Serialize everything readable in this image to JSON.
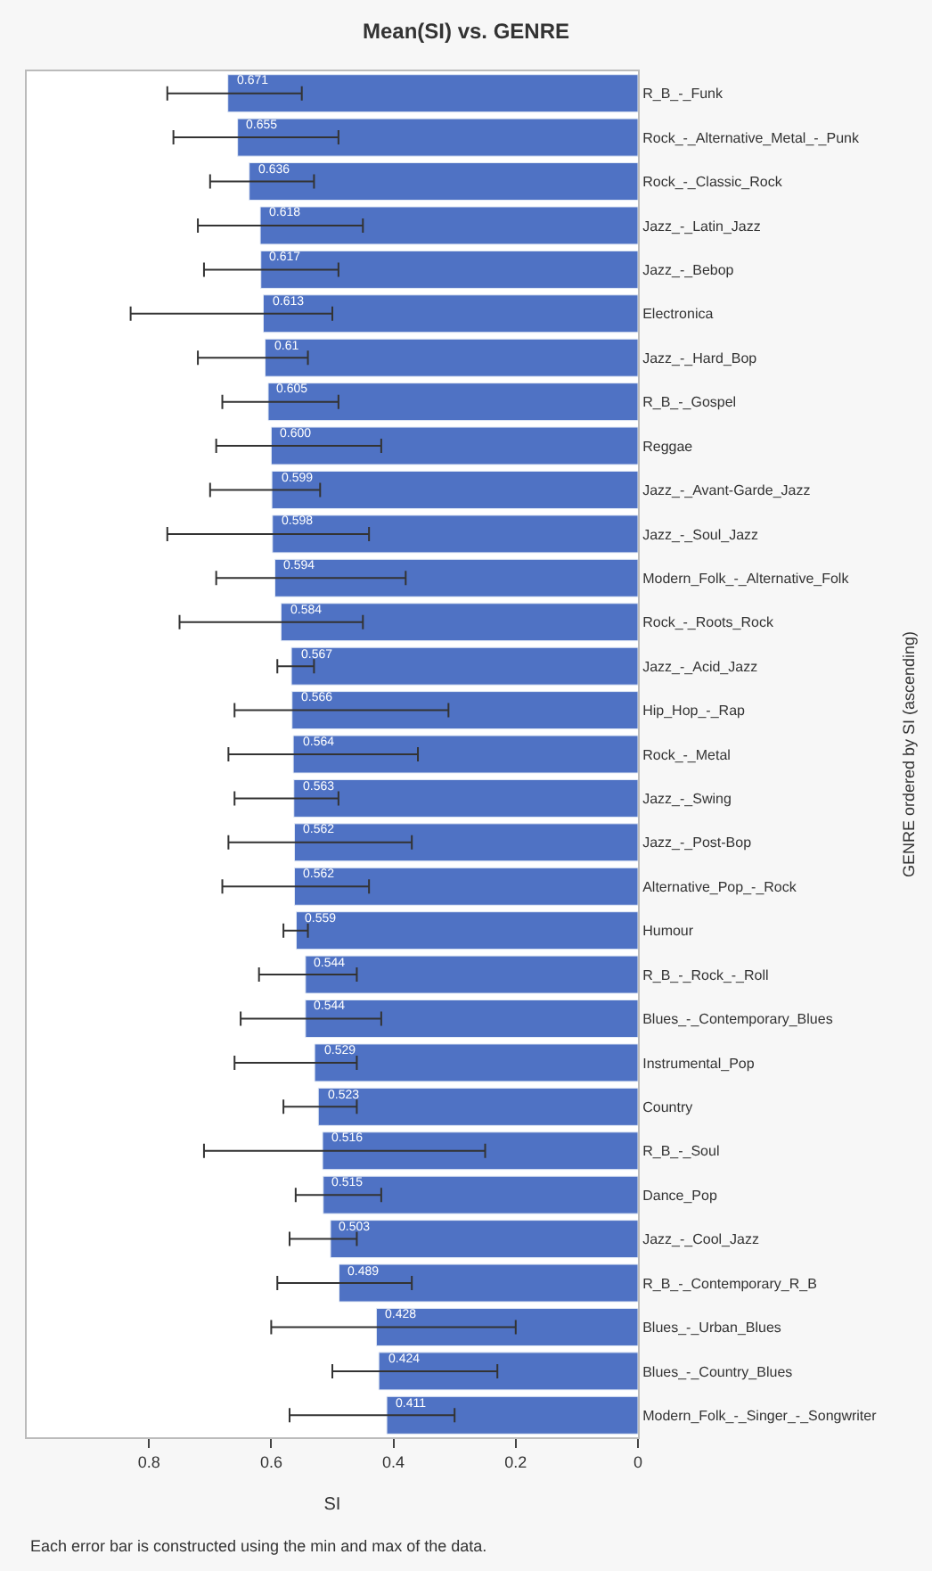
{
  "chart_data": {
    "type": "bar",
    "orientation": "horizontal",
    "title": "Mean(SI) vs. GENRE",
    "xlabel": "SI",
    "ylabel": "GENRE ordered by SI (ascending)",
    "categories": [
      "R_B_-_Funk",
      "Rock_-_Alternative_Metal_-_Punk",
      "Rock_-_Classic_Rock",
      "Jazz_-_Latin_Jazz",
      "Jazz_-_Bebop",
      "Electronica",
      "Jazz_-_Hard_Bop",
      "R_B_-_Gospel",
      "Reggae",
      "Jazz_-_Avant-Garde_Jazz",
      "Jazz_-_Soul_Jazz",
      "Modern_Folk_-_Alternative_Folk",
      "Rock_-_Roots_Rock",
      "Jazz_-_Acid_Jazz",
      "Hip_Hop_-_Rap",
      "Rock_-_Metal",
      "Jazz_-_Swing",
      "Jazz_-_Post-Bop",
      "Alternative_Pop_-_Rock",
      "Humour",
      "R_B_-_Rock_-_Roll",
      "Blues_-_Contemporary_Blues",
      "Instrumental_Pop",
      "Country",
      "R_B_-_Soul",
      "Dance_Pop",
      "Jazz_-_Cool_Jazz",
      "R_B_-_Contemporary_R_B",
      "Blues_-_Urban_Blues",
      "Blues_-_Country_Blues",
      "Modern_Folk_-_Singer_-_Songwriter"
    ],
    "values": [
      0.671,
      0.655,
      0.636,
      0.618,
      0.617,
      0.613,
      0.61,
      0.605,
      0.6,
      0.599,
      0.598,
      0.594,
      0.584,
      0.567,
      0.566,
      0.564,
      0.563,
      0.562,
      0.562,
      0.559,
      0.544,
      0.544,
      0.529,
      0.523,
      0.516,
      0.515,
      0.503,
      0.489,
      0.428,
      0.424,
      0.411
    ],
    "value_labels": [
      "0.671",
      "0.655",
      "0.636",
      "0.618",
      "0.617",
      "0.613",
      "0.61",
      "0.605",
      "0.600",
      "0.599",
      "0.598",
      "0.594",
      "0.584",
      "0.567",
      "0.566",
      "0.564",
      "0.563",
      "0.562",
      "0.562",
      "0.559",
      "0.544",
      "0.544",
      "0.529",
      "0.523",
      "0.516",
      "0.515",
      "0.503",
      "0.489",
      "0.428",
      "0.424",
      "0.411"
    ],
    "errors": [
      [
        0.55,
        0.77
      ],
      [
        0.49,
        0.76
      ],
      [
        0.53,
        0.7
      ],
      [
        0.45,
        0.72
      ],
      [
        0.49,
        0.71
      ],
      [
        0.5,
        0.83
      ],
      [
        0.54,
        0.72
      ],
      [
        0.49,
        0.68
      ],
      [
        0.42,
        0.69
      ],
      [
        0.52,
        0.7
      ],
      [
        0.44,
        0.77
      ],
      [
        0.38,
        0.69
      ],
      [
        0.45,
        0.75
      ],
      [
        0.53,
        0.59
      ],
      [
        0.31,
        0.66
      ],
      [
        0.36,
        0.67
      ],
      [
        0.49,
        0.66
      ],
      [
        0.37,
        0.67
      ],
      [
        0.44,
        0.68
      ],
      [
        0.54,
        0.58
      ],
      [
        0.46,
        0.62
      ],
      [
        0.42,
        0.65
      ],
      [
        0.46,
        0.66
      ],
      [
        0.46,
        0.58
      ],
      [
        0.25,
        0.71
      ],
      [
        0.42,
        0.56
      ],
      [
        0.46,
        0.57
      ],
      [
        0.37,
        0.59
      ],
      [
        0.2,
        0.6
      ],
      [
        0.23,
        0.5
      ],
      [
        0.3,
        0.57
      ]
    ],
    "color": "#4f72c4",
    "xlim": [
      1.0,
      0
    ],
    "xticks": [
      0,
      0.2,
      0.4,
      0.6,
      0.8
    ],
    "annotations": [
      "Each error bar is constructed using the min and max of the data."
    ]
  }
}
